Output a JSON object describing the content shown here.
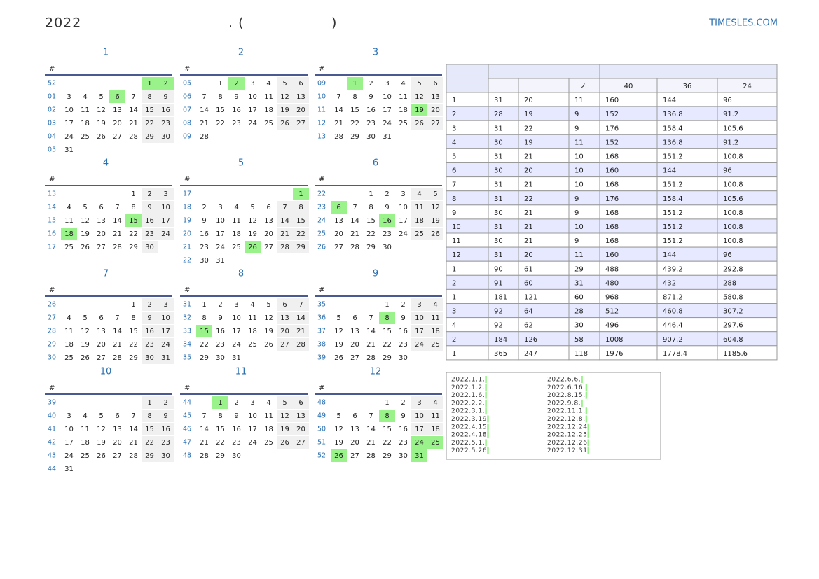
{
  "header": {
    "year": "2022",
    "middle_left": ". (",
    "middle_right": ")",
    "site": "TIMESLES.COM"
  },
  "week_header": "#",
  "months": [
    {
      "title": "1",
      "holidays": [
        1,
        2,
        6
      ],
      "weeks": [
        [
          "52",
          null,
          null,
          null,
          null,
          null,
          1,
          2
        ],
        [
          "01",
          3,
          4,
          5,
          6,
          7,
          8,
          9
        ],
        [
          "02",
          10,
          11,
          12,
          13,
          14,
          15,
          16
        ],
        [
          "03",
          17,
          18,
          19,
          20,
          21,
          22,
          23
        ],
        [
          "04",
          24,
          25,
          26,
          27,
          28,
          29,
          30
        ],
        [
          "05",
          31
        ]
      ]
    },
    {
      "title": "2",
      "holidays": [
        2
      ],
      "weeks": [
        [
          "05",
          null,
          1,
          2,
          3,
          4,
          5,
          6
        ],
        [
          "06",
          7,
          8,
          9,
          10,
          11,
          12,
          13
        ],
        [
          "07",
          14,
          15,
          16,
          17,
          18,
          19,
          20
        ],
        [
          "08",
          21,
          22,
          23,
          24,
          25,
          26,
          27
        ],
        [
          "09",
          28
        ]
      ]
    },
    {
      "title": "3",
      "holidays": [
        1,
        19
      ],
      "weeks": [
        [
          "09",
          null,
          1,
          2,
          3,
          4,
          5,
          6
        ],
        [
          "10",
          7,
          8,
          9,
          10,
          11,
          12,
          13
        ],
        [
          "11",
          14,
          15,
          16,
          17,
          18,
          19,
          20
        ],
        [
          "12",
          21,
          22,
          23,
          24,
          25,
          26,
          27
        ],
        [
          "13",
          28,
          29,
          30,
          31
        ]
      ]
    },
    {
      "title": "4",
      "holidays": [
        15,
        18
      ],
      "weeks": [
        [
          "13",
          null,
          null,
          null,
          null,
          1,
          2,
          3
        ],
        [
          "14",
          4,
          5,
          6,
          7,
          8,
          9,
          10
        ],
        [
          "15",
          11,
          12,
          13,
          14,
          15,
          16,
          17
        ],
        [
          "16",
          18,
          19,
          20,
          21,
          22,
          23,
          24
        ],
        [
          "17",
          25,
          26,
          27,
          28,
          29,
          30
        ]
      ]
    },
    {
      "title": "5",
      "holidays": [
        1,
        26
      ],
      "weeks": [
        [
          "17",
          null,
          null,
          null,
          null,
          null,
          null,
          1
        ],
        [
          "18",
          2,
          3,
          4,
          5,
          6,
          7,
          8
        ],
        [
          "19",
          9,
          10,
          11,
          12,
          13,
          14,
          15
        ],
        [
          "20",
          16,
          17,
          18,
          19,
          20,
          21,
          22
        ],
        [
          "21",
          23,
          24,
          25,
          26,
          27,
          28,
          29
        ],
        [
          "22",
          30,
          31
        ]
      ]
    },
    {
      "title": "6",
      "holidays": [
        6,
        16
      ],
      "weeks": [
        [
          "22",
          null,
          null,
          1,
          2,
          3,
          4,
          5
        ],
        [
          "23",
          6,
          7,
          8,
          9,
          10,
          11,
          12
        ],
        [
          "24",
          13,
          14,
          15,
          16,
          17,
          18,
          19
        ],
        [
          "25",
          20,
          21,
          22,
          23,
          24,
          25,
          26
        ],
        [
          "26",
          27,
          28,
          29,
          30
        ]
      ]
    },
    {
      "title": "7",
      "holidays": [],
      "weeks": [
        [
          "26",
          null,
          null,
          null,
          null,
          1,
          2,
          3
        ],
        [
          "27",
          4,
          5,
          6,
          7,
          8,
          9,
          10
        ],
        [
          "28",
          11,
          12,
          13,
          14,
          15,
          16,
          17
        ],
        [
          "29",
          18,
          19,
          20,
          21,
          22,
          23,
          24
        ],
        [
          "30",
          25,
          26,
          27,
          28,
          29,
          30,
          31
        ]
      ]
    },
    {
      "title": "8",
      "holidays": [
        15
      ],
      "weeks": [
        [
          "31",
          1,
          2,
          3,
          4,
          5,
          6,
          7
        ],
        [
          "32",
          8,
          9,
          10,
          11,
          12,
          13,
          14
        ],
        [
          "33",
          15,
          16,
          17,
          18,
          19,
          20,
          21
        ],
        [
          "34",
          22,
          23,
          24,
          25,
          26,
          27,
          28
        ],
        [
          "35",
          29,
          30,
          31
        ]
      ]
    },
    {
      "title": "9",
      "holidays": [
        8
      ],
      "weeks": [
        [
          "35",
          null,
          null,
          null,
          1,
          2,
          3,
          4
        ],
        [
          "36",
          5,
          6,
          7,
          8,
          9,
          10,
          11
        ],
        [
          "37",
          12,
          13,
          14,
          15,
          16,
          17,
          18
        ],
        [
          "38",
          19,
          20,
          21,
          22,
          23,
          24,
          25
        ],
        [
          "39",
          26,
          27,
          28,
          29,
          30
        ]
      ]
    },
    {
      "title": "10",
      "holidays": [],
      "weeks": [
        [
          "39",
          null,
          null,
          null,
          null,
          null,
          1,
          2
        ],
        [
          "40",
          3,
          4,
          5,
          6,
          7,
          8,
          9
        ],
        [
          "41",
          10,
          11,
          12,
          13,
          14,
          15,
          16
        ],
        [
          "42",
          17,
          18,
          19,
          20,
          21,
          22,
          23
        ],
        [
          "43",
          24,
          25,
          26,
          27,
          28,
          29,
          30
        ],
        [
          "44",
          31
        ]
      ]
    },
    {
      "title": "11",
      "holidays": [
        1
      ],
      "weeks": [
        [
          "44",
          null,
          1,
          2,
          3,
          4,
          5,
          6
        ],
        [
          "45",
          7,
          8,
          9,
          10,
          11,
          12,
          13
        ],
        [
          "46",
          14,
          15,
          16,
          17,
          18,
          19,
          20
        ],
        [
          "47",
          21,
          22,
          23,
          24,
          25,
          26,
          27
        ],
        [
          "48",
          28,
          29,
          30
        ]
      ]
    },
    {
      "title": "12",
      "holidays": [
        8,
        24,
        25,
        26,
        31
      ],
      "weeks": [
        [
          "48",
          null,
          null,
          null,
          1,
          2,
          3,
          4
        ],
        [
          "49",
          5,
          6,
          7,
          8,
          9,
          10,
          11
        ],
        [
          "50",
          12,
          13,
          14,
          15,
          16,
          17,
          18
        ],
        [
          "51",
          19,
          20,
          21,
          22,
          23,
          24,
          25
        ],
        [
          "52",
          26,
          27,
          28,
          29,
          30,
          31
        ]
      ]
    }
  ],
  "table": {
    "col_headers": [
      "가",
      "40",
      "36",
      "24"
    ],
    "rows": [
      [
        "1",
        31,
        20,
        11,
        160,
        144,
        96
      ],
      [
        "2",
        28,
        19,
        9,
        152,
        136.8,
        91.2
      ],
      [
        "3",
        31,
        22,
        9,
        176,
        158.4,
        105.6
      ],
      [
        "4",
        30,
        19,
        11,
        152,
        136.8,
        91.2
      ],
      [
        "5",
        31,
        21,
        10,
        168,
        151.2,
        100.8
      ],
      [
        "6",
        30,
        20,
        10,
        160,
        144,
        96
      ],
      [
        "7",
        31,
        21,
        10,
        168,
        151.2,
        100.8
      ],
      [
        "8",
        31,
        22,
        9,
        176,
        158.4,
        105.6
      ],
      [
        "9",
        30,
        21,
        9,
        168,
        151.2,
        100.8
      ],
      [
        "10",
        31,
        21,
        10,
        168,
        151.2,
        100.8
      ],
      [
        "11",
        30,
        21,
        9,
        168,
        151.2,
        100.8
      ],
      [
        "12",
        31,
        20,
        11,
        160,
        144,
        96
      ],
      [
        "1",
        90,
        61,
        29,
        488,
        439.2,
        292.8
      ],
      [
        "2",
        91,
        60,
        31,
        480,
        432,
        288
      ],
      [
        "1",
        181,
        121,
        60,
        968,
        871.2,
        580.8
      ],
      [
        "3",
        92,
        64,
        28,
        512,
        460.8,
        307.2
      ],
      [
        "4",
        92,
        62,
        30,
        496,
        446.4,
        297.6
      ],
      [
        "2",
        184,
        126,
        58,
        1008,
        907.2,
        604.8
      ],
      [
        "1",
        365,
        247,
        118,
        1976,
        1778.4,
        1185.6
      ]
    ]
  },
  "holiday_list": [
    [
      "2022.1.1.",
      "2022.1.2.",
      "2022.1.6.",
      "2022.2.2.",
      "2022.3.1.",
      "2022.3.19",
      "2022.4.15",
      "2022.4.18",
      "2022.5.1.",
      "2022.5.26"
    ],
    [
      "2022.6.6.",
      "2022.6.16.",
      "2022.8.15.",
      "2022.9.8.",
      "2022.11.1.",
      "2022.12.8.",
      "2022.12.24",
      "2022.12.25",
      "2022.12.26",
      "2022.12.31"
    ]
  ]
}
